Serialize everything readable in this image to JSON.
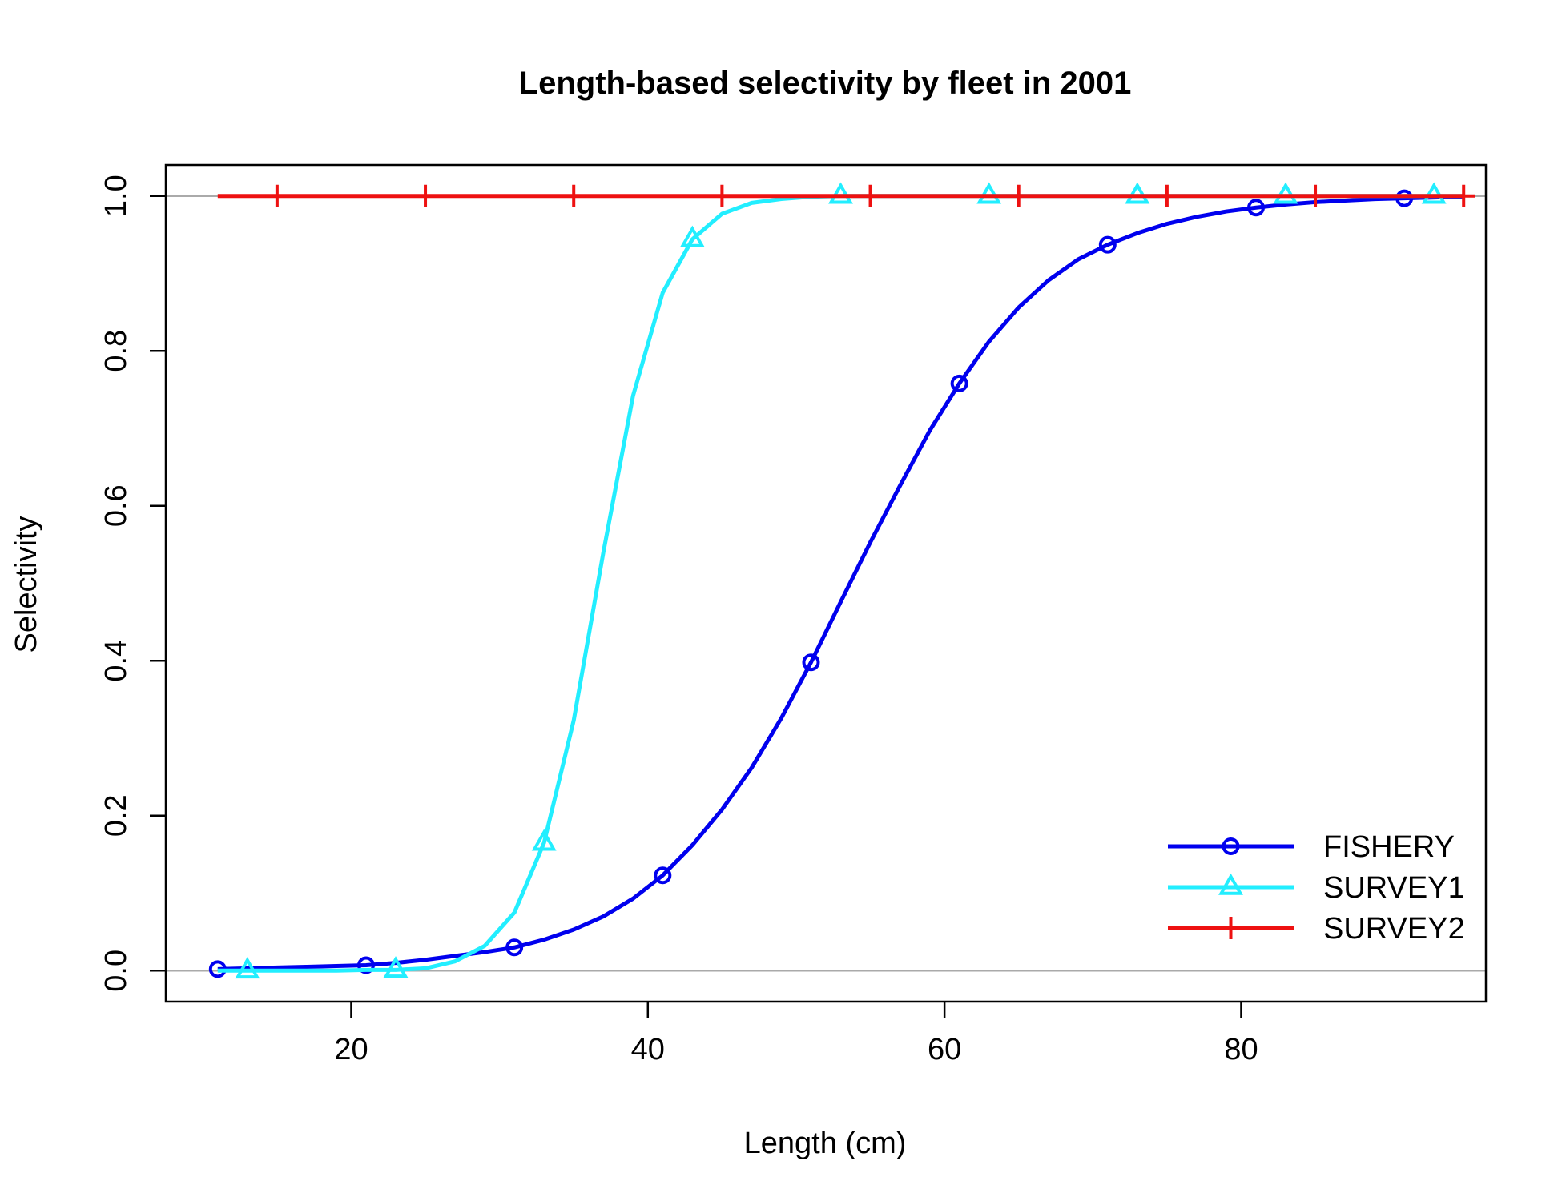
{
  "chart_data": {
    "type": "line",
    "title": "Length-based selectivity by fleet in 2001",
    "xlabel": "Length (cm)",
    "ylabel": "Selectivity",
    "xlim": [
      7.5,
      96.5
    ],
    "ylim": [
      -0.04,
      1.04
    ],
    "x_ticks": [
      "20",
      "40",
      "60",
      "80"
    ],
    "y_ticks": [
      "0.0",
      "0.2",
      "0.4",
      "0.6",
      "0.8",
      "1.0"
    ],
    "reference_lines_y": [
      0,
      1
    ],
    "legend_position": "bottom-right",
    "x": [
      11,
      13,
      15,
      17,
      19,
      21,
      23,
      25,
      27,
      29,
      31,
      33,
      35,
      37,
      39,
      41,
      43,
      45,
      47,
      49,
      51,
      53,
      55,
      57,
      59,
      61,
      63,
      65,
      67,
      69,
      71,
      73,
      75,
      77,
      79,
      81,
      83,
      85,
      87,
      89,
      91,
      93,
      95
    ],
    "series": [
      {
        "name": "FISHERY",
        "color": "#0000ee",
        "marker": "circle",
        "marker_x": [
          11,
          21,
          31,
          41,
          51,
          61,
          71,
          81,
          91
        ],
        "values": [
          0.002,
          0.003,
          0.004,
          0.005,
          0.006,
          0.007,
          0.01,
          0.014,
          0.019,
          0.024,
          0.03,
          0.04,
          0.053,
          0.07,
          0.093,
          0.123,
          0.162,
          0.208,
          0.262,
          0.326,
          0.398,
          0.476,
          0.553,
          0.626,
          0.697,
          0.758,
          0.812,
          0.856,
          0.891,
          0.918,
          0.937,
          0.952,
          0.964,
          0.973,
          0.98,
          0.985,
          0.989,
          0.992,
          0.994,
          0.996,
          0.997,
          0.998,
          0.999
        ]
      },
      {
        "name": "SURVEY1",
        "color": "#22eeff",
        "marker": "triangle",
        "marker_x": [
          13,
          23,
          33,
          43,
          53,
          63,
          73,
          83,
          93
        ],
        "values": [
          0.0,
          0.0,
          0.0,
          0.0,
          0.0,
          0.001,
          0.001,
          0.003,
          0.012,
          0.032,
          0.075,
          0.165,
          0.323,
          0.54,
          0.742,
          0.875,
          0.944,
          0.977,
          0.991,
          0.996,
          0.999,
          1.0,
          1.0,
          1.0,
          1.0,
          1.0,
          1.0,
          1.0,
          1.0,
          1.0,
          1.0,
          1.0,
          1.0,
          1.0,
          1.0,
          1.0,
          1.0,
          1.0,
          1.0,
          1.0,
          1.0,
          1.0,
          1.0
        ]
      },
      {
        "name": "SURVEY2",
        "color": "#ee1111",
        "marker": "plus",
        "marker_x": [
          15,
          25,
          35,
          45,
          55,
          65,
          75,
          85,
          95
        ],
        "values": [
          1,
          1,
          1,
          1,
          1,
          1,
          1,
          1,
          1,
          1,
          1,
          1,
          1,
          1,
          1,
          1,
          1,
          1,
          1,
          1,
          1,
          1,
          1,
          1,
          1,
          1,
          1,
          1,
          1,
          1,
          1,
          1,
          1,
          1,
          1,
          1,
          1,
          1,
          1,
          1,
          1,
          1,
          1
        ]
      }
    ]
  }
}
